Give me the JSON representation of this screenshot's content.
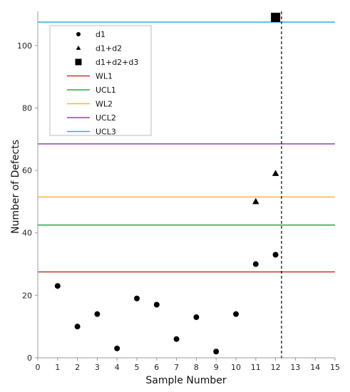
{
  "chart_data": {
    "type": "scatter",
    "xlabel": "Sample Number",
    "ylabel": "Number of Defects",
    "xlim": [
      0,
      15
    ],
    "ylim": [
      0,
      110
    ],
    "xticks": [
      "0",
      "1",
      "2",
      "3",
      "4",
      "5",
      "6",
      "7",
      "8",
      "9",
      "10",
      "11",
      "12",
      "13",
      "14",
      "15"
    ],
    "yticks": [
      "0",
      "20",
      "40",
      "60",
      "80",
      "100"
    ],
    "grid": false,
    "legend_position": "top-left",
    "series": [
      {
        "name": "d1",
        "marker": "circle",
        "color": "#000000",
        "x": [
          1,
          2,
          3,
          4,
          5,
          6,
          7,
          8,
          9,
          10,
          11,
          12
        ],
        "y": [
          23,
          10,
          14,
          3,
          19,
          17,
          6,
          13,
          2,
          14,
          30,
          33
        ]
      },
      {
        "name": "d1+d2",
        "marker": "triangle",
        "color": "#000000",
        "x": [
          11,
          12
        ],
        "y": [
          50,
          59
        ]
      },
      {
        "name": "d1+d2+d3",
        "marker": "square",
        "color": "#000000",
        "x": [
          12
        ],
        "y": [
          109
        ]
      }
    ],
    "reference_lines": [
      {
        "name": "WL1",
        "y": 27.5,
        "color": "#c0392b"
      },
      {
        "name": "UCL1",
        "y": 42.5,
        "color": "#27a844"
      },
      {
        "name": "WL2",
        "y": 51.5,
        "color": "#f5b731"
      },
      {
        "name": "UCL2",
        "y": 68.5,
        "color": "#8e44ad"
      },
      {
        "name": "UCL3",
        "y": 107.5,
        "color": "#2ab0d1"
      }
    ],
    "vertical_marker": {
      "x": 12.3,
      "style": "dashed",
      "color": "#000000"
    }
  }
}
